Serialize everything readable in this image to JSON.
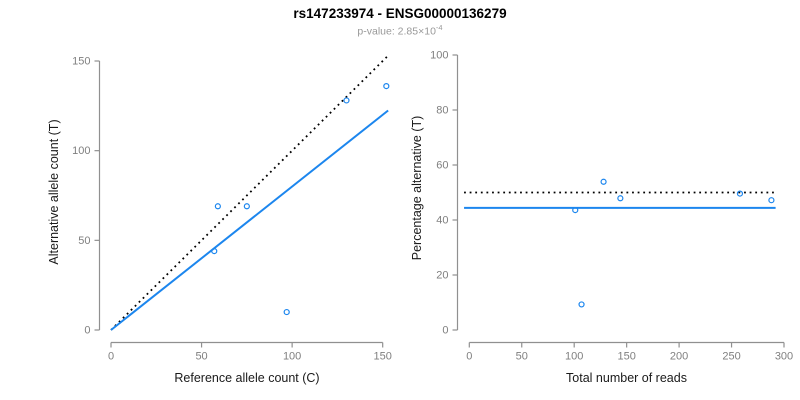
{
  "title": "rs147233974 - ENSG00000136279",
  "subtitle": {
    "prefix": "p-value: 2.85×10",
    "exponent": "-4"
  },
  "colors": {
    "accent_blue": "#1C86EE",
    "line_black": "#000000",
    "axis_gray": "#909090",
    "tick_label_gray": "#7F7F7F",
    "axis_title_color": "#1A1A1A",
    "subtitle_gray": "#999999",
    "background": "#FFFFFF"
  },
  "chart_data": [
    {
      "id": "allele-counts-panel",
      "type": "scatter",
      "xlabel": "Reference allele count (C)",
      "ylabel": "Alternative allele count (T)",
      "xticks": [
        0,
        50,
        100,
        150
      ],
      "yticks": [
        0,
        50,
        100,
        150
      ],
      "xlim": [
        0,
        153
      ],
      "ylim": [
        0,
        153
      ],
      "grid": false,
      "legend": false,
      "marker": "open-circle",
      "points": [
        [
          57,
          44
        ],
        [
          59,
          69
        ],
        [
          75,
          69
        ],
        [
          97,
          10
        ],
        [
          130,
          128
        ],
        [
          152,
          136
        ]
      ],
      "lines": [
        {
          "name": "identity-line",
          "style": "dotted",
          "color": "#000000",
          "x1": 0,
          "y1": 0,
          "x2": 153,
          "y2": 153
        },
        {
          "name": "regression-line",
          "style": "solid",
          "color": "#1C86EE",
          "x1": 0,
          "y1": 0,
          "x2": 153,
          "y2": 122.4,
          "slope": 0.8
        }
      ]
    },
    {
      "id": "percentage-vs-reads-panel",
      "type": "scatter",
      "xlabel": "Total number of reads",
      "ylabel": "Percentage alternative (T)",
      "xticks": [
        0,
        50,
        100,
        150,
        200,
        250,
        300
      ],
      "yticks": [
        0,
        20,
        40,
        60,
        80,
        100
      ],
      "xlim": [
        -5,
        296
      ],
      "ylim": [
        0,
        100
      ],
      "grid": false,
      "legend": false,
      "marker": "open-circle",
      "points": [
        [
          101,
          43.6
        ],
        [
          107,
          9.3
        ],
        [
          128,
          53.9
        ],
        [
          144,
          47.9
        ],
        [
          258,
          49.6
        ],
        [
          288,
          47.2
        ]
      ],
      "lines": [
        {
          "name": "expected-50pct-line",
          "style": "dotted",
          "color": "#000000",
          "x1": -5,
          "y1": 50,
          "x2": 292,
          "y2": 50
        },
        {
          "name": "mean-percentage-line",
          "style": "solid",
          "color": "#1C86EE",
          "x1": -5,
          "y1": 44.4,
          "x2": 292,
          "y2": 44.4
        }
      ]
    }
  ]
}
